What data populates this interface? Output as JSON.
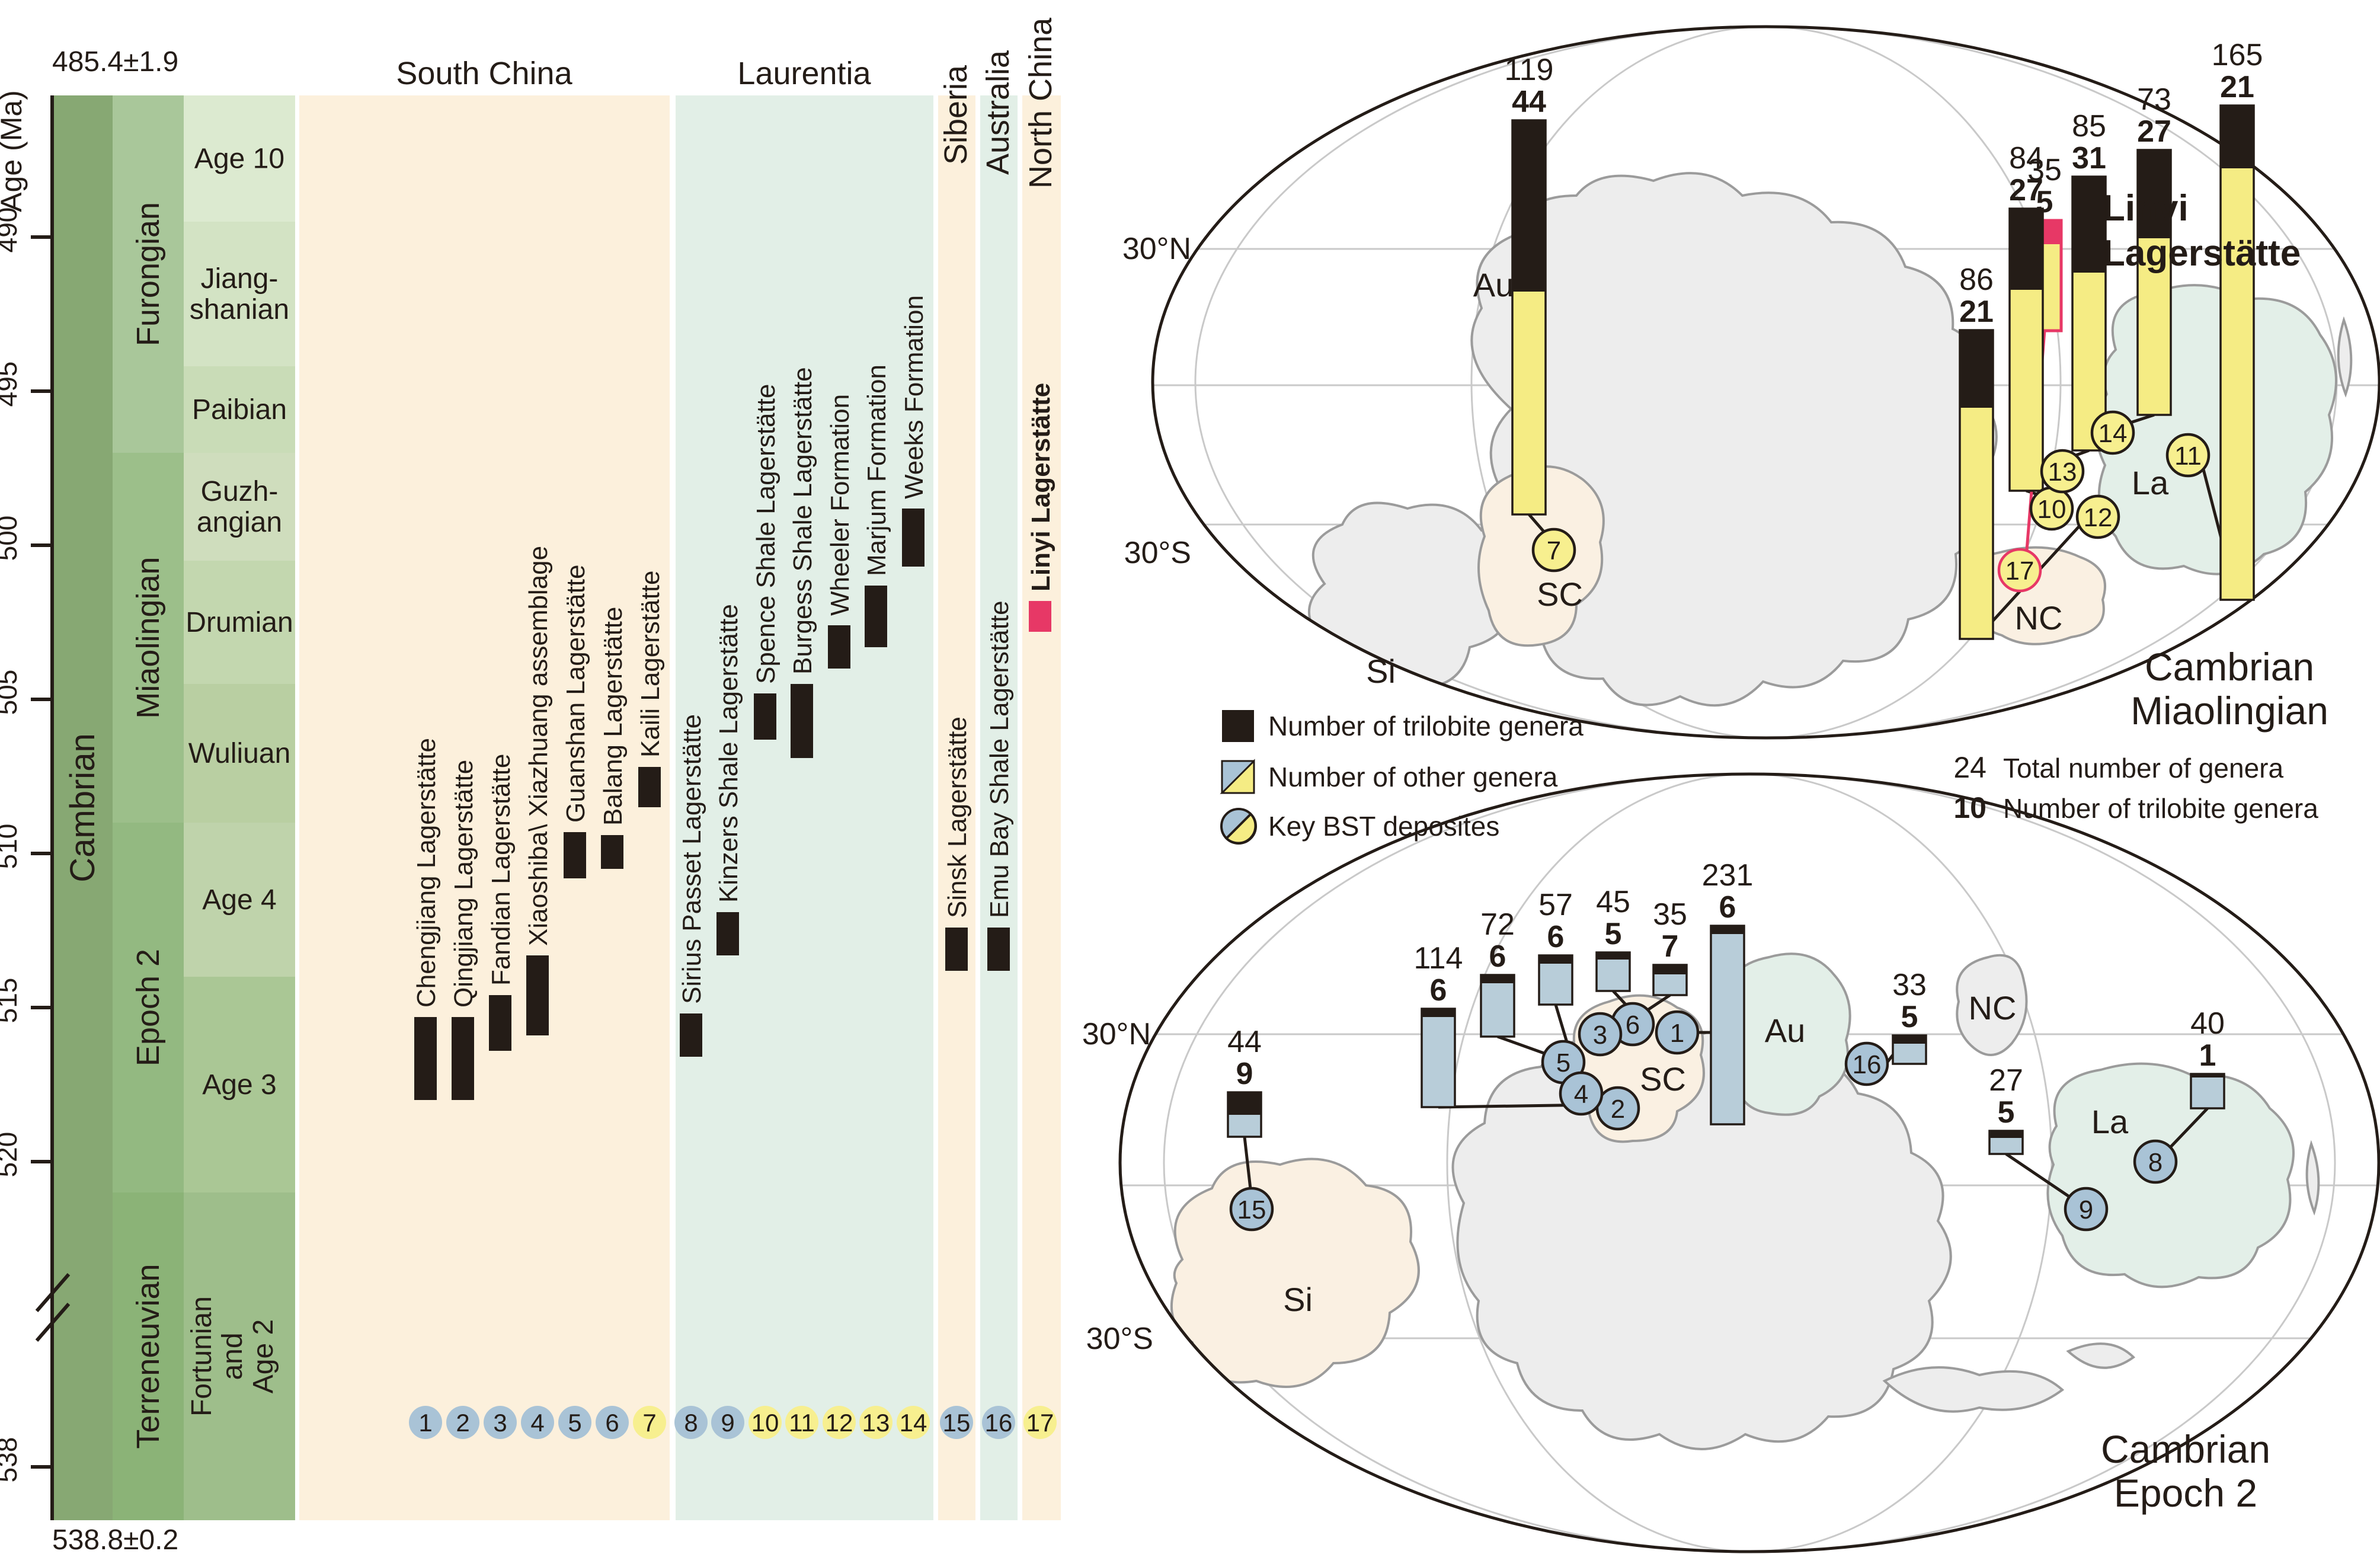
{
  "figure": {
    "axis": {
      "title": "Age (Ma)",
      "top_boundary": "485.4±1.9",
      "bottom_boundary": "538.8±0.2",
      "ticks": [
        "490",
        "495",
        "500",
        "505",
        "510",
        "515",
        "520",
        "538"
      ],
      "tick_ma": [
        490,
        495,
        500,
        505,
        510,
        515,
        520,
        538
      ]
    },
    "period": "Cambrian",
    "epochs": [
      {
        "name": "Furongian",
        "from_ma": 485.4,
        "to_ma": 497
      },
      {
        "name": "Miaolingian",
        "from_ma": 497,
        "to_ma": 509
      },
      {
        "name": "Epoch 2",
        "from_ma": 509,
        "to_ma": 521
      },
      {
        "name": "Terreneuvian",
        "from_ma": 521,
        "to_ma": 538.8
      }
    ],
    "ages": [
      {
        "lines": [
          "Age 10"
        ],
        "from_ma": 485.4,
        "to_ma": 489.5
      },
      {
        "lines": [
          "Jiang-",
          "shanian"
        ],
        "from_ma": 489.5,
        "to_ma": 494.2
      },
      {
        "lines": [
          "Paibian"
        ],
        "from_ma": 494.2,
        "to_ma": 497
      },
      {
        "lines": [
          "Guzh-",
          "angian"
        ],
        "from_ma": 497,
        "to_ma": 500.5
      },
      {
        "lines": [
          "Drumian"
        ],
        "from_ma": 500.5,
        "to_ma": 504.5
      },
      {
        "lines": [
          "Wuliuan"
        ],
        "from_ma": 504.5,
        "to_ma": 509
      },
      {
        "lines": [
          "Age 4"
        ],
        "from_ma": 509,
        "to_ma": 514
      },
      {
        "lines": [
          "Age 3"
        ],
        "from_ma": 514,
        "to_ma": 521
      },
      {
        "lines": [
          "Fortunian",
          "and",
          "Age 2"
        ],
        "from_ma": 521,
        "to_ma": 538.8,
        "rotated": true
      }
    ],
    "regions": {
      "south_china": "South China",
      "laurentia": "Laurentia",
      "siberia": "Siberia",
      "australia": "Australia",
      "north_china": "North China"
    },
    "sites": [
      {
        "id": "1",
        "name": "Chengjiang Lagerstätte",
        "region": "South China",
        "marker": "blue",
        "from_ma": 515.3,
        "to_ma": 518.0
      },
      {
        "id": "2",
        "name": "Qingjiang Lagerstätte",
        "region": "South China",
        "marker": "blue",
        "from_ma": 515.3,
        "to_ma": 518.0
      },
      {
        "id": "3",
        "name": "Fandian Lagerstätte",
        "region": "South China",
        "marker": "blue",
        "from_ma": 514.6,
        "to_ma": 516.4
      },
      {
        "id": "4",
        "name": "Xiaoshiba\\ Xiazhuang assemblage",
        "region": "South China",
        "marker": "blue",
        "from_ma": 513.3,
        "to_ma": 515.9
      },
      {
        "id": "5",
        "name": "Guanshan Lagerstätte",
        "region": "South China",
        "marker": "blue",
        "from_ma": 509.3,
        "to_ma": 510.8
      },
      {
        "id": "6",
        "name": "Balang Lagerstätte",
        "region": "South China",
        "marker": "blue",
        "from_ma": 509.4,
        "to_ma": 510.5
      },
      {
        "id": "7",
        "name": "Kaili Lagerstätte",
        "region": "South China",
        "marker": "yellow",
        "from_ma": 507.2,
        "to_ma": 508.5
      },
      {
        "id": "8",
        "name": "Sirius Passet Lagerstätte",
        "region": "Laurentia",
        "marker": "blue",
        "from_ma": 515.2,
        "to_ma": 516.6
      },
      {
        "id": "9",
        "name": "Kinzers Shale Lagerstätte",
        "region": "Laurentia",
        "marker": "blue",
        "from_ma": 511.9,
        "to_ma": 513.3
      },
      {
        "id": "10",
        "name": "Spence Shale Lagerstätte",
        "region": "Laurentia",
        "marker": "yellow",
        "from_ma": 504.8,
        "to_ma": 506.3
      },
      {
        "id": "11",
        "name": "Burgess Shale Lagerstätte",
        "region": "Laurentia",
        "marker": "yellow",
        "from_ma": 504.5,
        "to_ma": 506.9
      },
      {
        "id": "12",
        "name": "Wheeler Formation",
        "region": "Laurentia",
        "marker": "yellow",
        "from_ma": 502.6,
        "to_ma": 504.0
      },
      {
        "id": "13",
        "name": "Marjum Formation",
        "region": "Laurentia",
        "marker": "yellow",
        "from_ma": 501.3,
        "to_ma": 503.3
      },
      {
        "id": "14",
        "name": "Weeks Formation",
        "region": "Laurentia",
        "marker": "yellow",
        "from_ma": 498.8,
        "to_ma": 500.7
      },
      {
        "id": "15",
        "name": "Sinsk Lagerstätte",
        "region": "Siberia",
        "marker": "blue",
        "from_ma": 512.4,
        "to_ma": 513.8
      },
      {
        "id": "16",
        "name": "Emu Bay Shale Lagerstätte",
        "region": "Australia",
        "marker": "blue",
        "from_ma": 512.4,
        "to_ma": 513.8
      },
      {
        "id": "17",
        "name": "Linyi Lagerstätte",
        "region": "North China",
        "marker": "yellow",
        "highlight": true,
        "from_ma": 501.8,
        "to_ma": 502.8
      }
    ]
  },
  "legend": {
    "items": [
      {
        "swatch": "black-square",
        "label": "Number of trilobite genera"
      },
      {
        "swatch": "split-square",
        "label": "Number of other genera"
      },
      {
        "swatch": "split-circle",
        "label": "Key BST deposites"
      }
    ],
    "annotations": [
      {
        "value": "24",
        "label": "Total number of genera",
        "bold_value": false
      },
      {
        "value": "10",
        "label": "Number of trilobite genera",
        "bold_value": true
      }
    ]
  },
  "maps": {
    "top": {
      "title_lines": [
        "Cambrian",
        "Miaolingian"
      ],
      "callout_lines": [
        "Linyi",
        "Lagerstätte"
      ],
      "labels": {
        "lat_n": "30°N",
        "lat_s": "30°S",
        "si": "Si",
        "au": "Au",
        "sc": "SC",
        "nc": "NC",
        "la": "La"
      },
      "deposits": [
        {
          "circle": "7",
          "total": 119,
          "trilobites": 44
        },
        {
          "circle": "17",
          "total": 35,
          "trilobites": 5,
          "highlight": true
        },
        {
          "circle": "12",
          "total": 86,
          "trilobites": 21
        },
        {
          "circle": "10",
          "total": 84,
          "trilobites": 27
        },
        {
          "circle": "13",
          "total": 85,
          "trilobites": 31
        },
        {
          "circle": "14",
          "total": 73,
          "trilobites": 27
        },
        {
          "circle": "11",
          "total": 165,
          "trilobites": 21
        }
      ]
    },
    "bottom": {
      "title_lines": [
        "Cambrian",
        "Epoch 2"
      ],
      "labels": {
        "lat_n": "30°N",
        "lat_s": "30°S",
        "si": "Si",
        "au": "Au",
        "sc": "SC",
        "nc": "NC",
        "la": "La"
      },
      "deposits": [
        {
          "circle": "15",
          "total": 44,
          "trilobites": 9
        },
        {
          "circle": "2",
          "total": 114,
          "trilobites": 6
        },
        {
          "circle": "5",
          "total": 72,
          "trilobites": 6
        },
        {
          "circle": "4",
          "total": 57,
          "trilobites": 6
        },
        {
          "circle": "6",
          "total": 45,
          "trilobites": 5
        },
        {
          "circle": "3",
          "total": 35,
          "trilobites": 7
        },
        {
          "circle": "1",
          "total": 231,
          "trilobites": 6
        },
        {
          "circle": "16",
          "total": 33,
          "trilobites": 5
        },
        {
          "circle": "9",
          "total": 27,
          "trilobites": 5
        },
        {
          "circle": "8",
          "total": 40,
          "trilobites": 1
        }
      ]
    }
  },
  "colors": {
    "ink": "#241c17",
    "accent_red": "#e73866",
    "bar_yellow": "#f5ec84",
    "bar_blue": "#b8cdd9",
    "circle_blue": "#a9c3d6",
    "circle_yellow": "#f7ef8f",
    "panel_peach": "#fcf0dc",
    "panel_mint": "#e2efe7",
    "period_fill": "#87a873",
    "epoch_fills": [
      "#a9c79a",
      "#9cbf8a",
      "#93b981",
      "#8bb377"
    ],
    "age_fills": [
      "#dcead0",
      "#d3e3c4",
      "#c9dcb7",
      "#cfddbd",
      "#c3d7af",
      "#b9cfa2",
      "#bfd3ab",
      "#aac795",
      "#9ebe8b"
    ],
    "map_grey": "#ededed",
    "map_grey_stroke": "#9b9b9b",
    "graticule": "#c9c9c9"
  }
}
